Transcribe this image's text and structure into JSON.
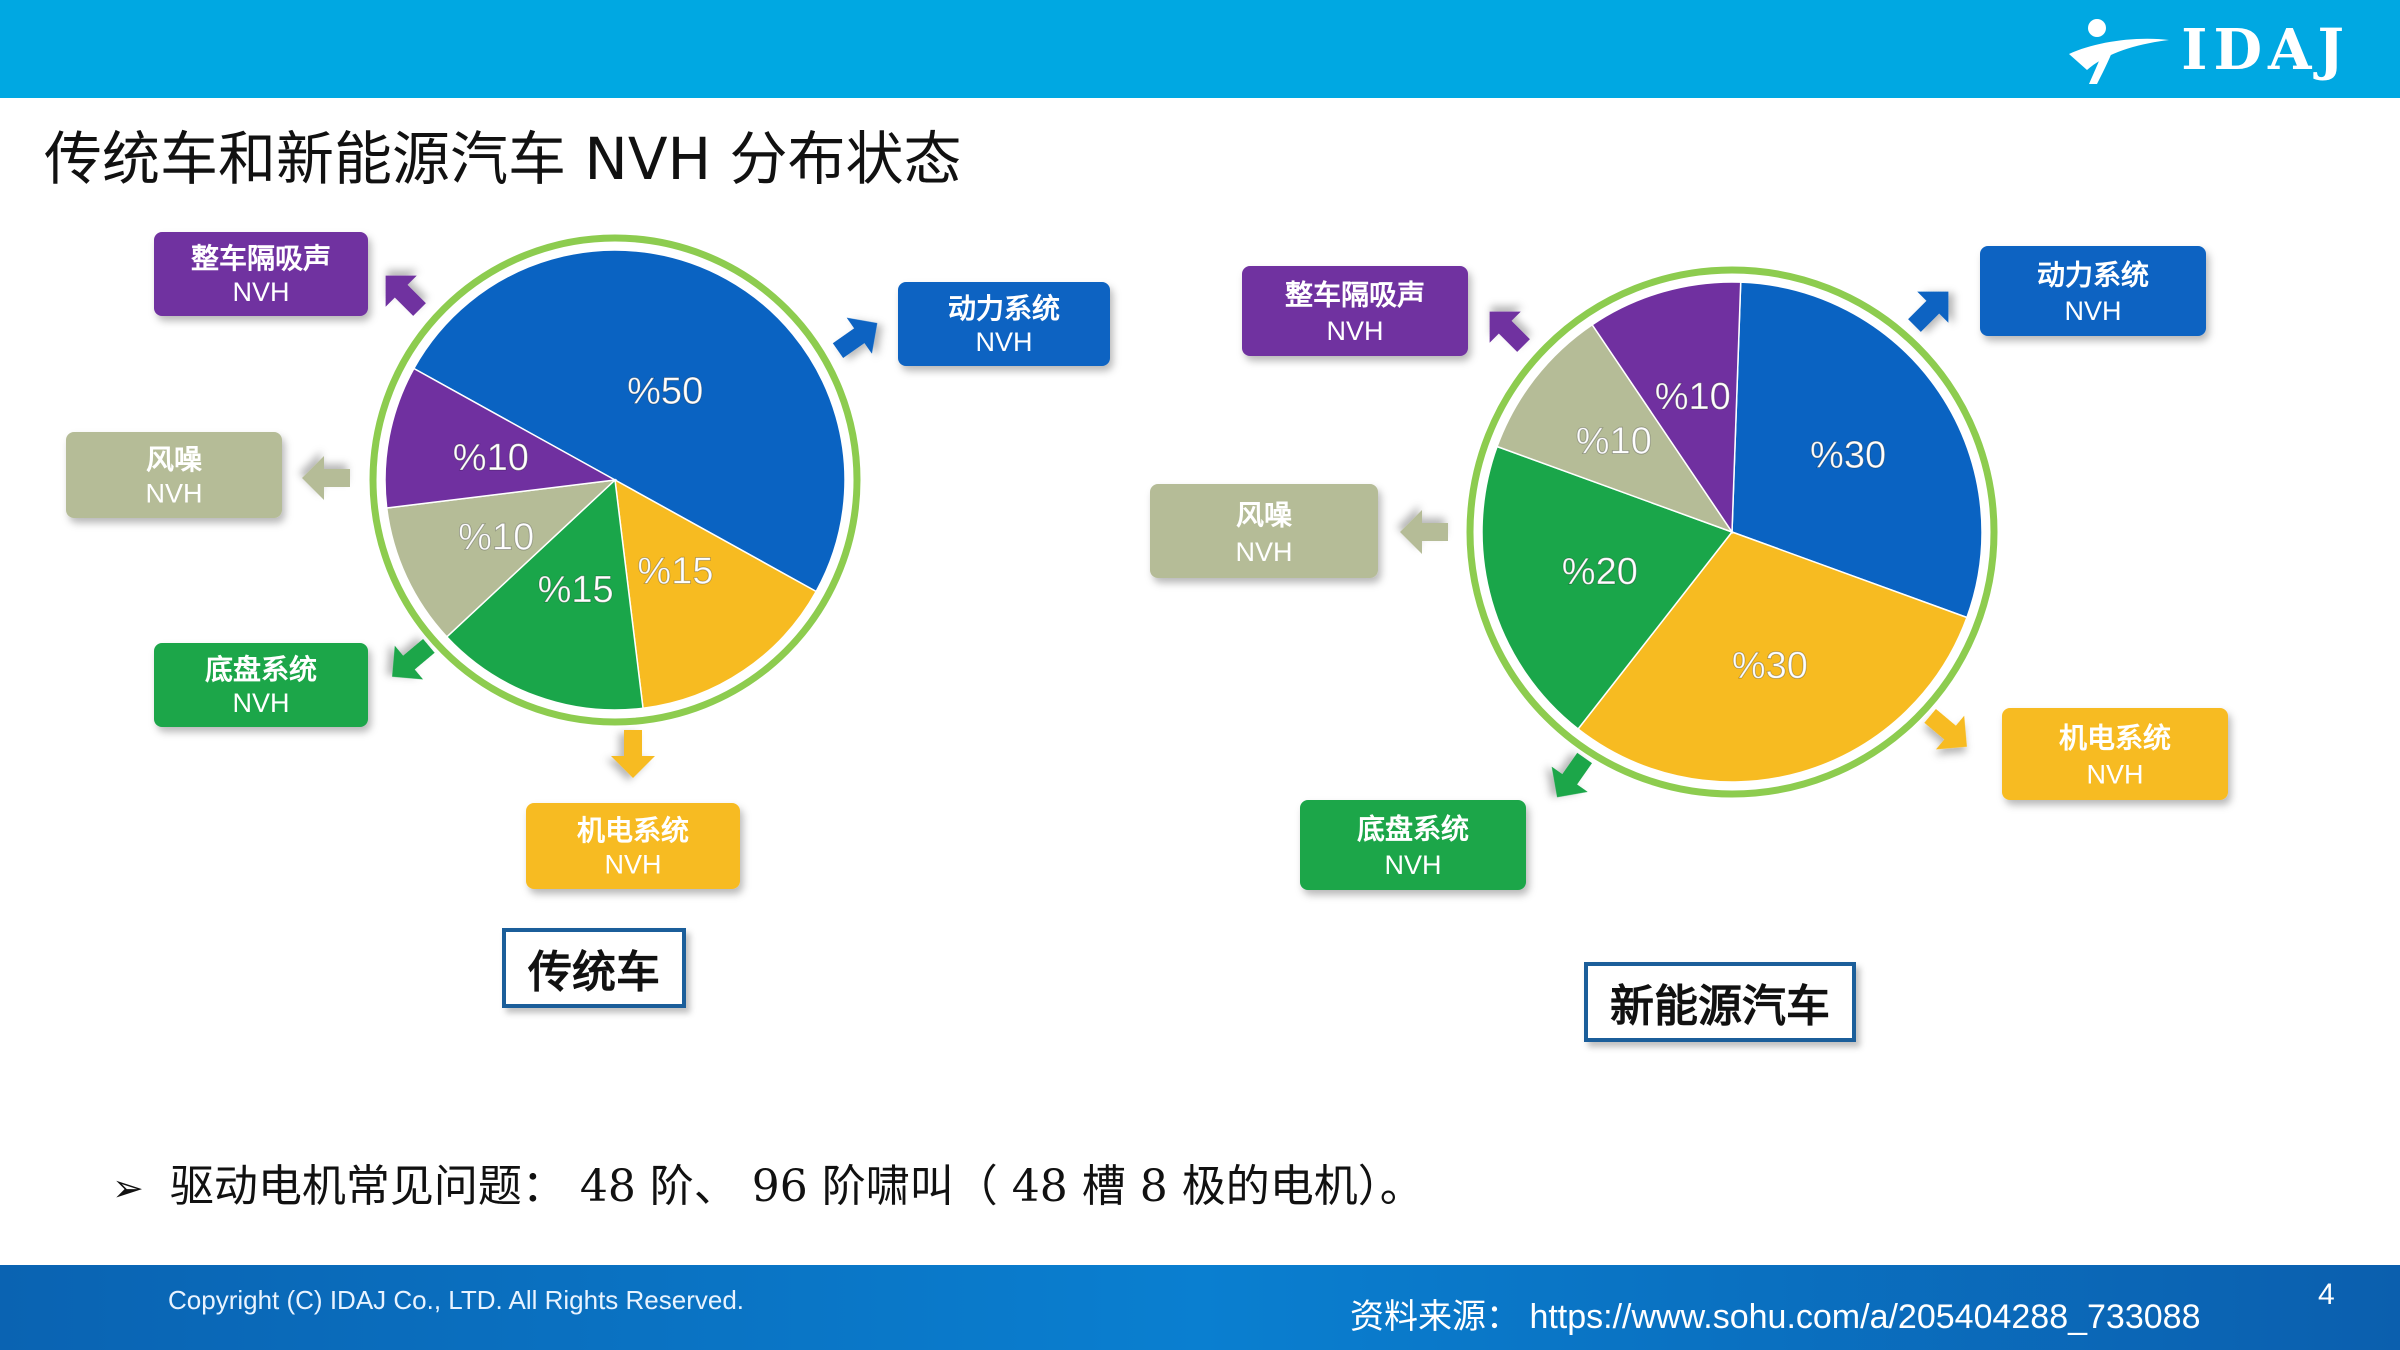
{
  "header": {
    "logo_text": "IDAJ",
    "title": "传统车和新能源汽车 NVH 分布状态"
  },
  "colors": {
    "header_bar": "#00a8e2",
    "footer_bar": "#0a63b2",
    "ring": "#8dcc4f"
  },
  "chart_data": [
    {
      "type": "pie",
      "title": "传统车",
      "slices": [
        {
          "name": "动力系统 NVH",
          "value": 50,
          "label": "%50",
          "color": "#0a63c2"
        },
        {
          "name": "机电系统 NVH",
          "value": 15,
          "label": "%15",
          "color": "#f7bb21"
        },
        {
          "name": "底盘系统 NVH",
          "value": 15,
          "label": "%15",
          "color": "#1aa64a"
        },
        {
          "name": "风噪 NVH",
          "value": 10,
          "label": "%10",
          "color": "#b5bc97"
        },
        {
          "name": "整车隔吸声 NVH",
          "value": 10,
          "label": "%10",
          "color": "#7030a0"
        }
      ]
    },
    {
      "type": "pie",
      "title": "新能源汽车",
      "slices": [
        {
          "name": "动力系统 NVH",
          "value": 30,
          "label": "%30",
          "color": "#0a63c2"
        },
        {
          "name": "机电系统 NVH",
          "value": 30,
          "label": "%30",
          "color": "#f7bb21"
        },
        {
          "name": "底盘系统 NVH",
          "value": 20,
          "label": "%20",
          "color": "#1aa64a"
        },
        {
          "name": "风噪 NVH",
          "value": 10,
          "label": "%10",
          "color": "#b5bc97"
        },
        {
          "name": "整车隔吸声 NVH",
          "value": 10,
          "label": "%10",
          "color": "#7030a0"
        }
      ]
    }
  ],
  "callouts": {
    "body_insulation": {
      "line1": "整车隔吸声",
      "line2": "NVH"
    },
    "powertrain": {
      "line1": "动力系统",
      "line2": "NVH"
    },
    "wind_noise": {
      "line1": "风噪",
      "line2": "NVH"
    },
    "chassis": {
      "line1": "底盘系统",
      "line2": "NVH"
    },
    "electromechanical": {
      "line1": "机电系统",
      "line2": "NVH"
    }
  },
  "bullet": {
    "marker": "➢",
    "text": "驱动电机常见问题： 48 阶、 96 阶啸叫（ 48 槽 8 极的电机）。"
  },
  "footer": {
    "copyright": "Copyright (C)  IDAJ Co., LTD. All Rights Reserved.",
    "source": "资料来源： https://www.sohu.com/a/205404288_733088",
    "page_number": "4"
  }
}
